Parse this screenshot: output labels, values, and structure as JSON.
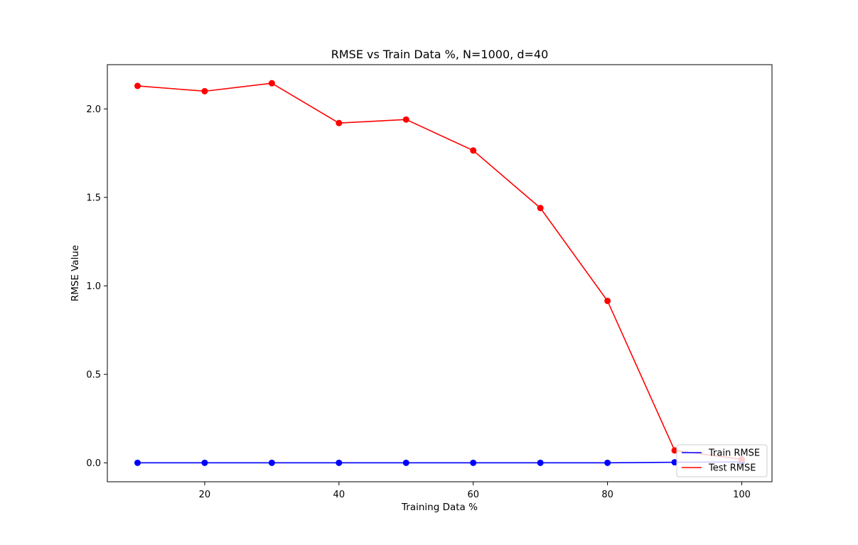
{
  "chart_data": {
    "type": "line",
    "title": "RMSE vs Train Data %, N=1000, d=40",
    "xlabel": "Training Data %",
    "ylabel": "RMSE Value",
    "x": [
      10,
      20,
      30,
      40,
      50,
      60,
      70,
      80,
      90,
      100
    ],
    "xlim": [
      5.5,
      104.5
    ],
    "ylim": [
      -0.107,
      2.25
    ],
    "xticks": [
      20,
      40,
      60,
      80,
      100
    ],
    "xtick_labels": [
      "20",
      "40",
      "60",
      "80",
      "100"
    ],
    "yticks": [
      0.0,
      0.5,
      1.0,
      1.5,
      2.0
    ],
    "ytick_labels": [
      "0.0",
      "0.5",
      "1.0",
      "1.5",
      "2.0"
    ],
    "grid": false,
    "legend_position": "bottom-right",
    "series": [
      {
        "name": "Train RMSE",
        "color": "#0000ff",
        "marker": "circle",
        "values": [
          0.0,
          0.0,
          0.0,
          0.0,
          0.0,
          0.0,
          0.0,
          0.0,
          0.003,
          0.005
        ]
      },
      {
        "name": "Test RMSE",
        "color": "#ff0000",
        "marker": "circle",
        "values": [
          2.13,
          2.1,
          2.145,
          1.92,
          1.94,
          1.765,
          1.44,
          0.915,
          0.07,
          0.02
        ]
      }
    ]
  }
}
